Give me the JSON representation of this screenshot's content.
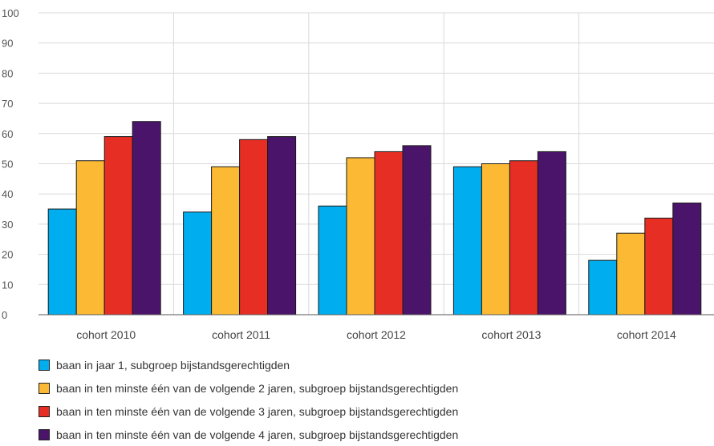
{
  "chart_data": {
    "type": "bar",
    "categories": [
      "cohort 2010",
      "cohort 2011",
      "cohort 2012",
      "cohort 2013",
      "cohort 2014"
    ],
    "series": [
      {
        "name": "baan in jaar 1, subgroep bijstandsgerechtigden",
        "color": "#00aeef",
        "values": [
          35,
          34,
          36,
          49,
          18
        ]
      },
      {
        "name": "baan in ten minste één van de volgende 2 jaren, subgroep bijstandsgerechtigden",
        "color": "#fbb934",
        "values": [
          51,
          49,
          52,
          50,
          27
        ]
      },
      {
        "name": "baan in ten minste één van de volgende 3 jaren, subgroep bijstandsgerechtigden",
        "color": "#e62e25",
        "values": [
          59,
          58,
          54,
          51,
          32
        ]
      },
      {
        "name": "baan in ten minste één van de volgende 4 jaren, subgroep bijstandsgerechtigden",
        "color": "#4b146b",
        "values": [
          64,
          59,
          56,
          54,
          37
        ]
      }
    ],
    "ylim": [
      0,
      100
    ],
    "yticks": [
      "0",
      "10",
      "20",
      "30",
      "40",
      "50",
      "60",
      "70",
      "80",
      "90",
      "100"
    ],
    "grid": true,
    "legend_position": "bottom"
  }
}
